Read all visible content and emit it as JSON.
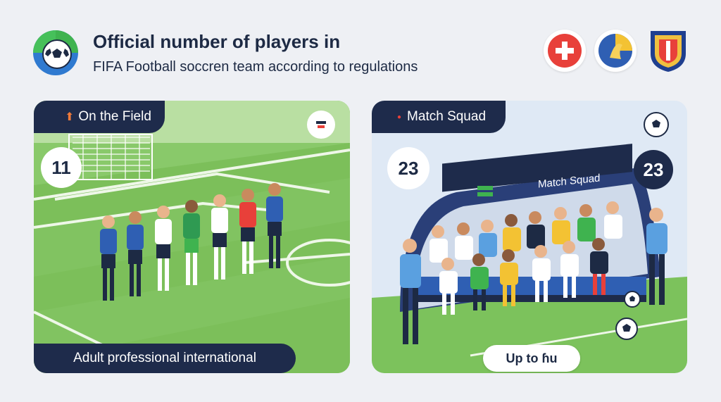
{
  "header": {
    "title": "Official number of players in",
    "subtitle": "FIFA Football soccren team according to regulations"
  },
  "left_panel": {
    "label": "On the Field",
    "count": "11",
    "footer": "Adult professional international"
  },
  "right_panel": {
    "label": "Match Squad",
    "count_left": "23",
    "count_right": "23",
    "bench_sign": "Match Squad",
    "footer": "Up to ɦu"
  },
  "colors": {
    "navy": "#1e2b4b",
    "pitch": "#7cc25c",
    "accent_red": "#e8403a",
    "accent_blue": "#2f5fb3"
  }
}
